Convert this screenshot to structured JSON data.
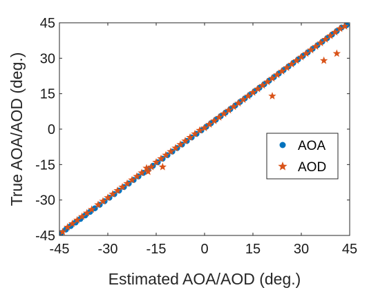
{
  "chart_data": {
    "type": "scatter",
    "title": "",
    "xlabel": "Estimated AOA/AOD (deg.)",
    "ylabel": "True AOA/AOD (deg.)",
    "xlim": [
      -45,
      45
    ],
    "ylim": [
      -45,
      45
    ],
    "xticks": [
      -45,
      -30,
      -15,
      0,
      15,
      30,
      45
    ],
    "yticks": [
      -45,
      -30,
      -15,
      0,
      15,
      30,
      45
    ],
    "xtick_labels": [
      "-45",
      "-30",
      "-15",
      "0",
      "15",
      "30",
      "45"
    ],
    "ytick_labels": [
      "-45",
      "-30",
      "-15",
      "0",
      "15",
      "30",
      "45"
    ],
    "grid": false,
    "legend_position": "right",
    "series": [
      {
        "name": "AOA",
        "marker": "dot",
        "color": "#0072bd",
        "points": [
          [
            -44.5,
            -44
          ],
          [
            -43,
            -42.5
          ],
          [
            -41.5,
            -41
          ],
          [
            -40,
            -39.5
          ],
          [
            -38.5,
            -38
          ],
          [
            -37,
            -36.5
          ],
          [
            -35.5,
            -35
          ],
          [
            -34,
            -33.5
          ],
          [
            -32.5,
            -32
          ],
          [
            -31,
            -30.5
          ],
          [
            -29.5,
            -29
          ],
          [
            -28,
            -27.5
          ],
          [
            -26.5,
            -26
          ],
          [
            -25,
            -24.5
          ],
          [
            -23.5,
            -23
          ],
          [
            -22,
            -21.5
          ],
          [
            -20.5,
            -20
          ],
          [
            -19,
            -18.5
          ],
          [
            -17.5,
            -17
          ],
          [
            -16,
            -15.5
          ],
          [
            -14.5,
            -14
          ],
          [
            -13,
            -12.5
          ],
          [
            -11.5,
            -11
          ],
          [
            -10,
            -9.5
          ],
          [
            -8.5,
            -8
          ],
          [
            -7,
            -6.5
          ],
          [
            -5.5,
            -5
          ],
          [
            -4,
            -3.5
          ],
          [
            -2.5,
            -2
          ],
          [
            -1,
            -0.5
          ],
          [
            0.5,
            1
          ],
          [
            2,
            2.5
          ],
          [
            3.5,
            4
          ],
          [
            5,
            5.5
          ],
          [
            6.5,
            7
          ],
          [
            8,
            8.5
          ],
          [
            9.5,
            10
          ],
          [
            11,
            11.5
          ],
          [
            12.5,
            13
          ],
          [
            14,
            14.5
          ],
          [
            15.5,
            16
          ],
          [
            17,
            17.5
          ],
          [
            18.5,
            19
          ],
          [
            20,
            20.5
          ],
          [
            21.5,
            22
          ],
          [
            23,
            23.5
          ],
          [
            24.5,
            25
          ],
          [
            26,
            26.5
          ],
          [
            27.5,
            28
          ],
          [
            29,
            29.5
          ],
          [
            30.5,
            31
          ],
          [
            32,
            32.5
          ],
          [
            33.5,
            34
          ],
          [
            35,
            35.5
          ],
          [
            36.5,
            37
          ],
          [
            38,
            38.5
          ],
          [
            39.5,
            40
          ],
          [
            41,
            41.5
          ],
          [
            42.5,
            43
          ],
          [
            44,
            44
          ]
        ]
      },
      {
        "name": "AOD",
        "marker": "star",
        "color": "#d95319",
        "points": [
          [
            -44,
            -43.5
          ],
          [
            -42.5,
            -41.5
          ],
          [
            -41,
            -40
          ],
          [
            -39.5,
            -38.5
          ],
          [
            -38,
            -37
          ],
          [
            -36.5,
            -35.5
          ],
          [
            -35,
            -34
          ],
          [
            -33,
            -32
          ],
          [
            -31.5,
            -30.5
          ],
          [
            -30,
            -29
          ],
          [
            -28.5,
            -27.5
          ],
          [
            -27,
            -26
          ],
          [
            -25.5,
            -24.5
          ],
          [
            -24,
            -23
          ],
          [
            -22.5,
            -21.5
          ],
          [
            -21,
            -20
          ],
          [
            -19.5,
            -18.5
          ],
          [
            -18,
            -16.5
          ],
          [
            -16.5,
            -16
          ],
          [
            -15,
            -14
          ],
          [
            -13.5,
            -12.5
          ],
          [
            -12,
            -11
          ],
          [
            -10.5,
            -9.5
          ],
          [
            -9,
            -8
          ],
          [
            -7.5,
            -6.5
          ],
          [
            -6,
            -5
          ],
          [
            -4.5,
            -3.5
          ],
          [
            -3,
            -2
          ],
          [
            -1.5,
            -0.5
          ],
          [
            0,
            0.5
          ],
          [
            1.5,
            2
          ],
          [
            3,
            3.5
          ],
          [
            4.5,
            5
          ],
          [
            6,
            6.5
          ],
          [
            7.5,
            8
          ],
          [
            9,
            9.5
          ],
          [
            10.5,
            11
          ],
          [
            12,
            12.5
          ],
          [
            13.5,
            14
          ],
          [
            15,
            15.5
          ],
          [
            16.5,
            17
          ],
          [
            18,
            18.5
          ],
          [
            19.5,
            20
          ],
          [
            21,
            21.5
          ],
          [
            22.5,
            23
          ],
          [
            24,
            24.5
          ],
          [
            25.5,
            26
          ],
          [
            27,
            27.5
          ],
          [
            28.5,
            29
          ],
          [
            30,
            30.5
          ],
          [
            31.5,
            32
          ],
          [
            33,
            33.5
          ],
          [
            34.5,
            35
          ],
          [
            36,
            36.5
          ],
          [
            37.5,
            38
          ],
          [
            39,
            39.5
          ],
          [
            40.5,
            41
          ],
          [
            42,
            42.5
          ],
          [
            43.5,
            43.5
          ],
          [
            -17.5,
            -18
          ],
          [
            -13,
            -16
          ],
          [
            21,
            14
          ],
          [
            37,
            29
          ],
          [
            41,
            32
          ]
        ]
      }
    ]
  }
}
